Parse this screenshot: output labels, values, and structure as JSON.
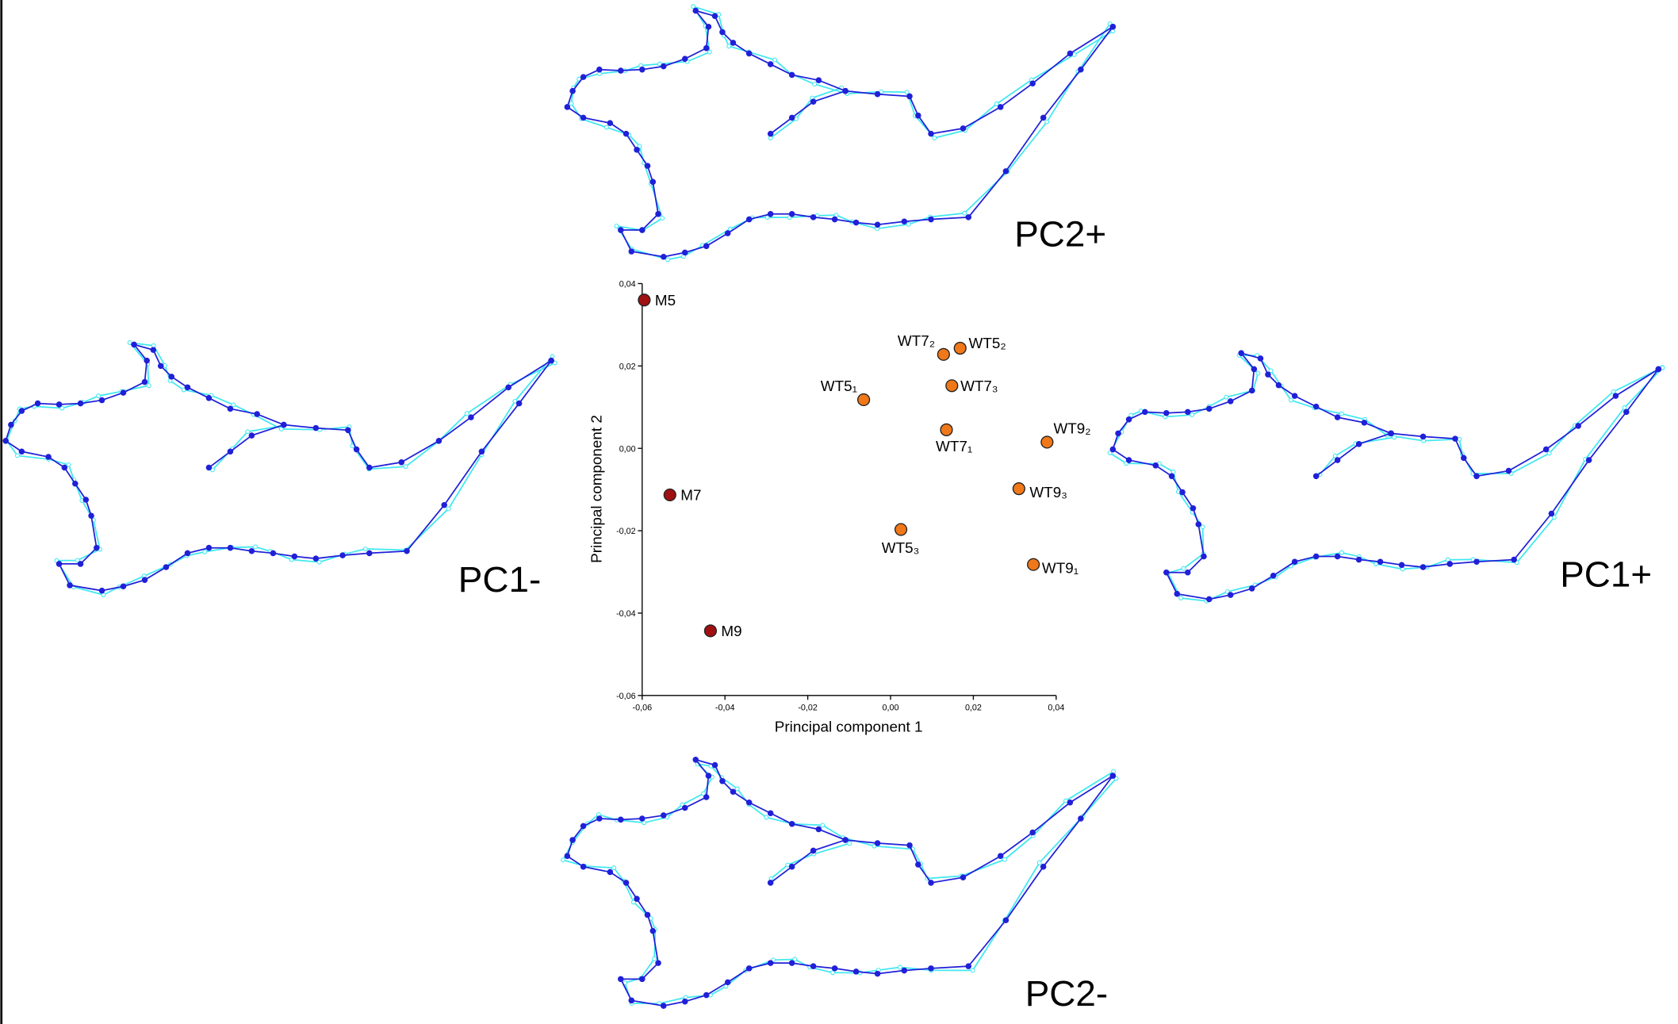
{
  "chart_data": {
    "type": "scatter",
    "x_label": "Principal component 1",
    "y_label": "Principal component 2",
    "xlim": [
      -0.06,
      0.04
    ],
    "ylim": [
      -0.06,
      0.04
    ],
    "xticks": [
      {
        "value": -0.06,
        "label": "-0,06"
      },
      {
        "value": -0.04,
        "label": "-0,04"
      },
      {
        "value": -0.02,
        "label": "-0,02"
      },
      {
        "value": 0,
        "label": "0,00"
      },
      {
        "value": 0.02,
        "label": "0,02"
      },
      {
        "value": 0.04,
        "label": "0,04"
      }
    ],
    "yticks": [
      {
        "value": -0.06,
        "label": "-0,06"
      },
      {
        "value": -0.04,
        "label": "-0,04"
      },
      {
        "value": -0.02,
        "label": "-0,02"
      },
      {
        "value": 0,
        "label": "0,00"
      },
      {
        "value": 0.02,
        "label": "0,02"
      },
      {
        "value": 0.04,
        "label": "0,04"
      }
    ],
    "series": [
      {
        "color": "#a01010",
        "labels": [
          "M5",
          "M7",
          "M9"
        ],
        "x": [
          -0.0595,
          -0.0533,
          -0.0435
        ],
        "y": [
          0.036,
          -0.0113,
          -0.0443
        ]
      },
      {
        "color": "#f07818",
        "labels": [
          "WT7₂",
          "WT5₂",
          "WT5₁",
          "WT7₃",
          "WT7₁",
          "WT9₂",
          "WT9₃",
          "WT5₃",
          "WT9₁"
        ],
        "x": [
          0.0128,
          0.0168,
          -0.0065,
          0.0148,
          0.0135,
          0.0378,
          0.031,
          0.0025,
          0.0345
        ],
        "y": [
          0.0228,
          0.0243,
          0.0118,
          0.0152,
          0.0045,
          0.0015,
          -0.0098,
          -0.0197,
          -0.0282
        ]
      }
    ],
    "annotations": [
      "PC2+",
      "PC1-",
      "PC1+",
      "PC2-"
    ]
  }
}
